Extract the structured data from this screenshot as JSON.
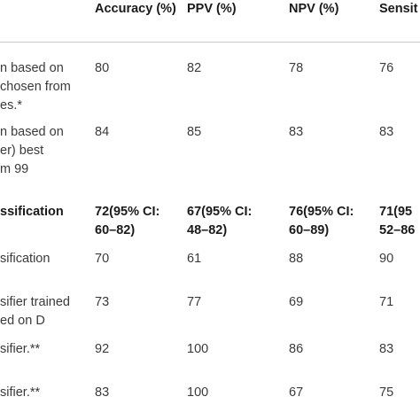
{
  "header": {
    "col_accuracy": "Accuracy (%)",
    "col_ppv": "PPV (%)",
    "col_npv": "NPV (%)",
    "col_sens": "Sensit"
  },
  "rows": [
    {
      "label_lines": [
        "n based on",
        "chosen from",
        "es.*"
      ],
      "accuracy": [
        "80"
      ],
      "ppv": [
        "82"
      ],
      "npv": [
        "78"
      ],
      "sens": [
        "76"
      ]
    },
    {
      "label_lines": [
        "n based on",
        "er) best",
        "m 99"
      ],
      "accuracy": [
        "84"
      ],
      "ppv": [
        "85"
      ],
      "npv": [
        "83"
      ],
      "sens": [
        "83"
      ]
    },
    {
      "label_lines": [
        "ssification"
      ],
      "bold": true,
      "accuracy": [
        "72(95% CI:",
        "60–82)"
      ],
      "ppv": [
        "67(95% CI:",
        "48–82)"
      ],
      "npv": [
        "76(95% CI:",
        "60–89)"
      ],
      "sens": [
        "71(95",
        "52–86"
      ]
    },
    {
      "label_lines": [
        "sification"
      ],
      "accuracy": [
        "70"
      ],
      "ppv": [
        "61"
      ],
      "npv": [
        "88"
      ],
      "sens": [
        "90"
      ]
    },
    {
      "label_lines": [
        "sifier trained",
        "ed on D"
      ],
      "accuracy": [
        "73"
      ],
      "ppv": [
        "77"
      ],
      "npv": [
        "69"
      ],
      "sens": [
        "71"
      ]
    },
    {
      "label_lines": [
        "sifier.**"
      ],
      "accuracy": [
        "92"
      ],
      "ppv": [
        "100"
      ],
      "npv": [
        "86"
      ],
      "sens": [
        "83"
      ]
    },
    {
      "label_lines": [
        "sifier.**"
      ],
      "accuracy": [
        "83"
      ],
      "ppv": [
        "100"
      ],
      "npv": [
        "67"
      ],
      "sens": [
        "75"
      ]
    }
  ]
}
